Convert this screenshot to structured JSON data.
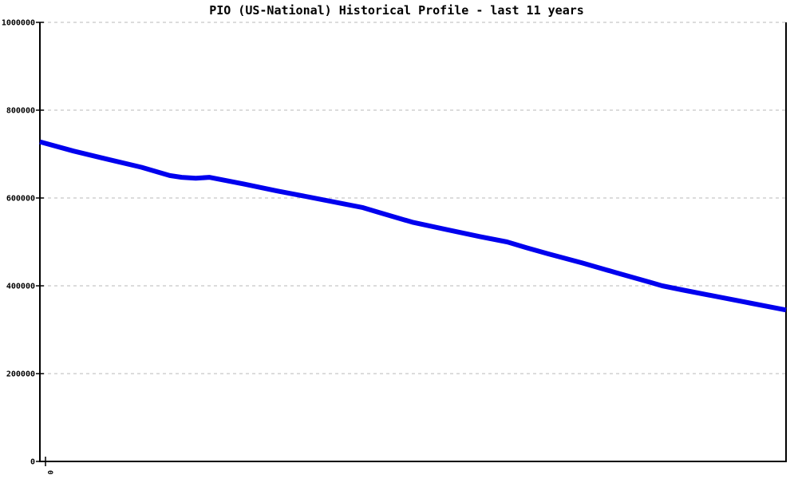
{
  "colors": {
    "background": "#ffffff",
    "line": "#0000ee",
    "grid": "#b9b9b9",
    "axis": "#000000",
    "text": "#000000"
  },
  "chart_data": {
    "type": "line",
    "title": "PIO (US-National) Historical Profile - last 11 years",
    "xlabel": "",
    "ylabel": "",
    "grid": "horizontal-dashed",
    "legend": "none",
    "ylim": [
      0,
      1000000
    ],
    "yticks": [
      {
        "value": 0,
        "label": "0"
      },
      {
        "value": 200000,
        "label": "200000"
      },
      {
        "value": 400000,
        "label": "400000"
      },
      {
        "value": 600000,
        "label": "600000"
      },
      {
        "value": 800000,
        "label": "800000"
      },
      {
        "value": 1000000,
        "label": "1000000"
      }
    ],
    "xticks": [
      {
        "pos": 0.0075,
        "label": "0"
      }
    ],
    "series": [
      {
        "name": "PIO (US-National)",
        "points": [
          [
            0.0,
            728000
          ],
          [
            0.045,
            707000
          ],
          [
            0.091,
            688000
          ],
          [
            0.136,
            670000
          ],
          [
            0.174,
            651000
          ],
          [
            0.19,
            647000
          ],
          [
            0.209,
            645000
          ],
          [
            0.227,
            647000
          ],
          [
            0.273,
            632000
          ],
          [
            0.318,
            616000
          ],
          [
            0.364,
            601000
          ],
          [
            0.409,
            586000
          ],
          [
            0.433,
            578000
          ],
          [
            0.455,
            567000
          ],
          [
            0.499,
            545000
          ],
          [
            0.545,
            528000
          ],
          [
            0.59,
            512000
          ],
          [
            0.626,
            500000
          ],
          [
            0.652,
            487000
          ],
          [
            0.681,
            473000
          ],
          [
            0.727,
            452000
          ],
          [
            0.772,
            430000
          ],
          [
            0.818,
            408000
          ],
          [
            0.834,
            400000
          ],
          [
            0.863,
            390000
          ],
          [
            0.909,
            375000
          ],
          [
            0.954,
            360000
          ],
          [
            1.0,
            345000
          ]
        ]
      }
    ]
  }
}
